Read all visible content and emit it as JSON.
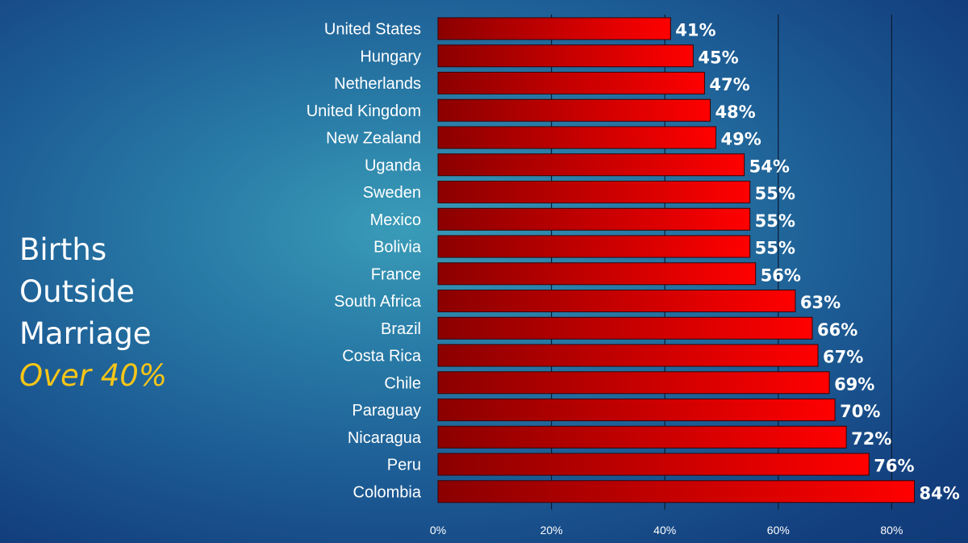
{
  "title": {
    "lines": [
      "Births",
      "Outside",
      "Marriage"
    ],
    "subtitle": "Over 40%"
  },
  "colors": {
    "bar_dark": "#8b0000",
    "bar_light": "#ff0000",
    "bar_stroke": "#3a0000",
    "subtitle": "#f5c518",
    "text": "#ffffff",
    "gridline": "#0b1a33"
  },
  "chart_data": {
    "type": "bar",
    "orientation": "horizontal",
    "title": "",
    "xlabel": "",
    "ylabel": "",
    "categories": [
      "United States",
      "Hungary",
      "Netherlands",
      "United Kingdom",
      "New Zealand",
      "Uganda",
      "Sweden",
      "Mexico",
      "Bolivia",
      "France",
      "South Africa",
      "Brazil",
      "Costa Rica",
      "Chile",
      "Paraguay",
      "Nicaragua",
      "Peru",
      "Colombia"
    ],
    "values": [
      41,
      45,
      47,
      48,
      49,
      54,
      55,
      55,
      55,
      56,
      63,
      66,
      67,
      69,
      70,
      72,
      76,
      84
    ],
    "value_labels": [
      "41%",
      "45%",
      "47%",
      "48%",
      "49%",
      "54%",
      "55%",
      "55%",
      "55%",
      "56%",
      "63%",
      "66%",
      "67%",
      "69%",
      "70%",
      "72%",
      "76%",
      "84%"
    ],
    "xlim": [
      0,
      85
    ],
    "x_ticks": [
      0,
      20,
      40,
      60,
      80
    ],
    "x_tick_labels": [
      "0%",
      "20%",
      "40%",
      "60%",
      "80%"
    ],
    "grid": "vertical",
    "legend": "none"
  }
}
